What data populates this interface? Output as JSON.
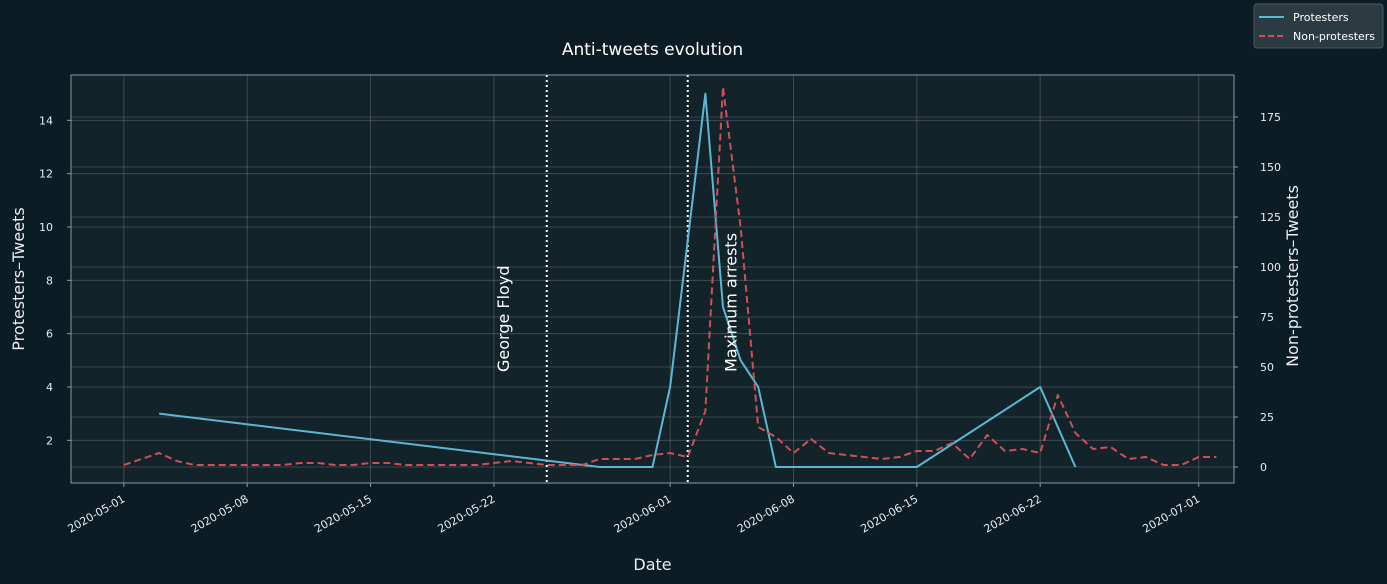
{
  "chart_data": {
    "type": "line",
    "title": "Anti-tweets evolution",
    "xlabel": "Date",
    "ylabel_left": "Protesters–Tweets",
    "ylabel_right": "Non-protesters–Tweets",
    "xlim": [
      "2020-04-28",
      "2020-07-03"
    ],
    "ylim_left": [
      0.4,
      15.7
    ],
    "ylim_right": [
      -8,
      196
    ],
    "yticks_left": [
      2,
      4,
      6,
      8,
      10,
      12,
      14
    ],
    "yticks_right": [
      0,
      25,
      50,
      75,
      100,
      125,
      150,
      175
    ],
    "xticks": [
      "2020-05-01",
      "2020-05-08",
      "2020-05-15",
      "2020-05-22",
      "2020-06-01",
      "2020-06-08",
      "2020-06-15",
      "2020-06-22",
      "2020-07-01"
    ],
    "grid": true,
    "legend_position": "top-right (outside axes)",
    "colors": {
      "protesters": "#5bb8d4",
      "non_protesters": "#cf4f57",
      "background": "#0c1c24",
      "plot_area": "#13232a",
      "annotation": "#ffffff"
    },
    "annotations": [
      {
        "label": "George Floyd",
        "date": "2020-05-25"
      },
      {
        "label": "Maximum arrests",
        "date": "2020-06-02"
      }
    ],
    "series": [
      {
        "name": "Protesters",
        "axis": "left",
        "style": "solid",
        "points": [
          [
            "2020-05-03",
            3
          ],
          [
            "2020-05-28",
            1
          ],
          [
            "2020-05-31",
            1
          ],
          [
            "2020-06-01",
            4
          ],
          [
            "2020-06-03",
            15
          ],
          [
            "2020-06-04",
            7
          ],
          [
            "2020-06-05",
            5
          ],
          [
            "2020-06-06",
            4
          ],
          [
            "2020-06-07",
            1
          ],
          [
            "2020-06-15",
            1
          ],
          [
            "2020-06-22",
            4
          ],
          [
            "2020-06-24",
            1
          ]
        ]
      },
      {
        "name": "Non-protesters",
        "axis": "right",
        "style": "dashed",
        "points": [
          [
            "2020-05-01",
            1
          ],
          [
            "2020-05-03",
            7
          ],
          [
            "2020-05-04",
            3
          ],
          [
            "2020-05-05",
            1
          ],
          [
            "2020-05-06",
            1
          ],
          [
            "2020-05-07",
            1
          ],
          [
            "2020-05-08",
            1
          ],
          [
            "2020-05-09",
            1
          ],
          [
            "2020-05-10",
            1
          ],
          [
            "2020-05-11",
            2
          ],
          [
            "2020-05-12",
            2
          ],
          [
            "2020-05-13",
            1
          ],
          [
            "2020-05-14",
            1
          ],
          [
            "2020-05-15",
            2
          ],
          [
            "2020-05-16",
            2
          ],
          [
            "2020-05-17",
            1
          ],
          [
            "2020-05-18",
            1
          ],
          [
            "2020-05-19",
            1
          ],
          [
            "2020-05-20",
            1
          ],
          [
            "2020-05-21",
            1
          ],
          [
            "2020-05-22",
            2
          ],
          [
            "2020-05-23",
            3
          ],
          [
            "2020-05-24",
            2
          ],
          [
            "2020-05-25",
            1
          ],
          [
            "2020-05-26",
            1
          ],
          [
            "2020-05-27",
            1
          ],
          [
            "2020-05-28",
            4
          ],
          [
            "2020-05-29",
            4
          ],
          [
            "2020-05-30",
            4
          ],
          [
            "2020-05-31",
            6
          ],
          [
            "2020-06-01",
            7
          ],
          [
            "2020-06-02",
            5
          ],
          [
            "2020-06-03",
            28
          ],
          [
            "2020-06-04",
            190
          ],
          [
            "2020-06-05",
            120
          ],
          [
            "2020-06-06",
            20
          ],
          [
            "2020-06-07",
            15
          ],
          [
            "2020-06-08",
            7
          ],
          [
            "2020-06-09",
            14
          ],
          [
            "2020-06-10",
            7
          ],
          [
            "2020-06-11",
            6
          ],
          [
            "2020-06-12",
            5
          ],
          [
            "2020-06-13",
            4
          ],
          [
            "2020-06-14",
            5
          ],
          [
            "2020-06-15",
            8
          ],
          [
            "2020-06-16",
            8
          ],
          [
            "2020-06-17",
            12
          ],
          [
            "2020-06-18",
            4
          ],
          [
            "2020-06-19",
            16
          ],
          [
            "2020-06-20",
            8
          ],
          [
            "2020-06-21",
            9
          ],
          [
            "2020-06-22",
            7
          ],
          [
            "2020-06-23",
            36
          ],
          [
            "2020-06-24",
            17
          ],
          [
            "2020-06-25",
            9
          ],
          [
            "2020-06-26",
            10
          ],
          [
            "2020-06-27",
            4
          ],
          [
            "2020-06-28",
            5
          ],
          [
            "2020-06-29",
            1
          ],
          [
            "2020-06-30",
            1
          ],
          [
            "2020-07-01",
            5
          ],
          [
            "2020-07-02",
            5
          ]
        ]
      }
    ]
  }
}
